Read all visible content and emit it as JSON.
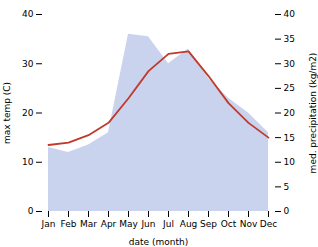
{
  "chart_data": {
    "type": "line",
    "xlabel": "date (month)",
    "ylabel": "max temp (C)",
    "y2label": "med. precipitation (kg/m2)",
    "categories": [
      "Jan",
      "Feb",
      "Mar",
      "Apr",
      "May",
      "Jun",
      "Jul",
      "Aug",
      "Sep",
      "Oct",
      "Nov",
      "Dec"
    ],
    "series": [
      {
        "type": "area",
        "axis": "y2",
        "color": "#b8c4e8",
        "values": [
          13.0,
          12.0,
          13.5,
          16.0,
          36.0,
          35.5,
          30.0,
          33.0,
          27.0,
          23.0,
          20.0,
          16.0
        ]
      },
      {
        "type": "line",
        "color": "#c0392b",
        "values": [
          13.5,
          14.0,
          15.5,
          18.0,
          23.0,
          28.5,
          32.0,
          32.5,
          27.5,
          22.0,
          18.0,
          15.0
        ]
      }
    ],
    "ylim": [
      0,
      40
    ],
    "yticks": [
      0,
      10,
      20,
      30,
      40
    ],
    "y2lim": [
      0,
      40
    ],
    "y2ticks": [
      0,
      5,
      10,
      15,
      20,
      25,
      30,
      35,
      40
    ]
  }
}
